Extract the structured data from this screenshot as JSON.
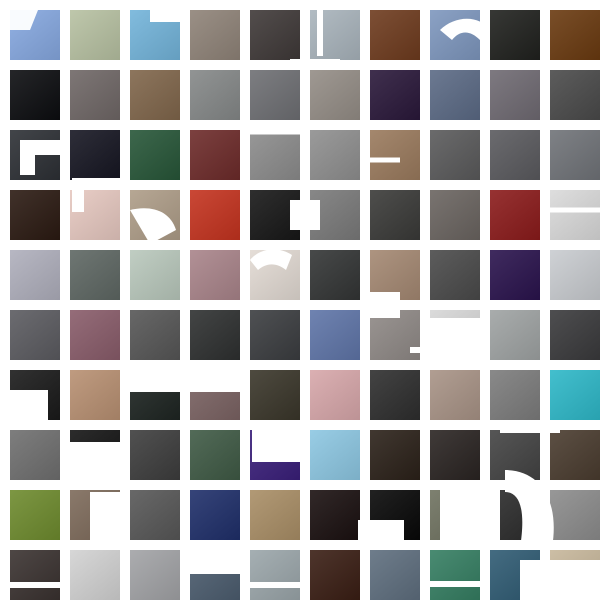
{
  "image": {
    "description_free": true
  },
  "mosaic": {
    "rows": 10,
    "cols": 10,
    "tile_colors": [
      [
        "#86A8E0",
        "#B7C1A2",
        "#73B4DA",
        "#8F8378",
        "#3F3938",
        "#A9B4BC",
        "#6E3B1E",
        "#7E97BE",
        "#20211E",
        "#6A3A10"
      ],
      [
        "#0C0D10",
        "#6F6766",
        "#80664B",
        "#858888",
        "#6E6F73",
        "#948D86",
        "#2A183A",
        "#5B6A85",
        "#6F6A72",
        "#4A4A4A"
      ],
      [
        "#2D3035",
        "#161622",
        "#275638",
        "#6D2B2A",
        "#8C8C8C",
        "#8F8F8F",
        "#9A7A5D",
        "#5A5A5B",
        "#5A5A5E",
        "#707378"
      ],
      [
        "#2B1A12",
        "#E6C8C0",
        "#AE9D88",
        "#C4331F",
        "#171717",
        "#7A7A7A",
        "#3A3A38",
        "#6A6460",
        "#8B1B1B",
        "#DADADA"
      ],
      [
        "#AFAFBC",
        "#5E6763",
        "#B9C8BC",
        "#A9848A",
        "#E2DAD3",
        "#333535",
        "#A48872",
        "#4A4A4A",
        "#2A134D",
        "#C9CCD0"
      ],
      [
        "#5B5B60",
        "#895C6A",
        "#565656",
        "#2E3030",
        "#3B3D40",
        "#5F75A8",
        "#8F8986",
        "#D7D7D7",
        "#9FA3A3",
        "#3A3A3C"
      ],
      [
        "#1A1A1A",
        "#B89072",
        "#1E2522",
        "#7B6363",
        "#3A362A",
        "#D7A7AA",
        "#2E2E2E",
        "#A89386",
        "#7C7C7C",
        "#2EB8C8"
      ],
      [
        "#6F6F6F",
        "#141414",
        "#3D3D3D",
        "#3F5A45",
        "#3A1F7A",
        "#8DC7E2",
        "#2B2119",
        "#2A2422",
        "#434343",
        "#4A3C2F"
      ],
      [
        "#6E8B2E",
        "#7D6A5A",
        "#575757",
        "#1F2F6A",
        "#A98E66",
        "#1A1010",
        "#080808",
        "#6F7260",
        "#2C2C2C",
        "#8C8C8C"
      ],
      [
        "#3A3230",
        "#D2D2D2",
        "#A2A3A6",
        "#4C5D6F",
        "#9BA6AA",
        "#3A1E14",
        "#5E6E7E",
        "#357E62",
        "#2F5B73",
        "#C7B79B"
      ]
    ]
  }
}
